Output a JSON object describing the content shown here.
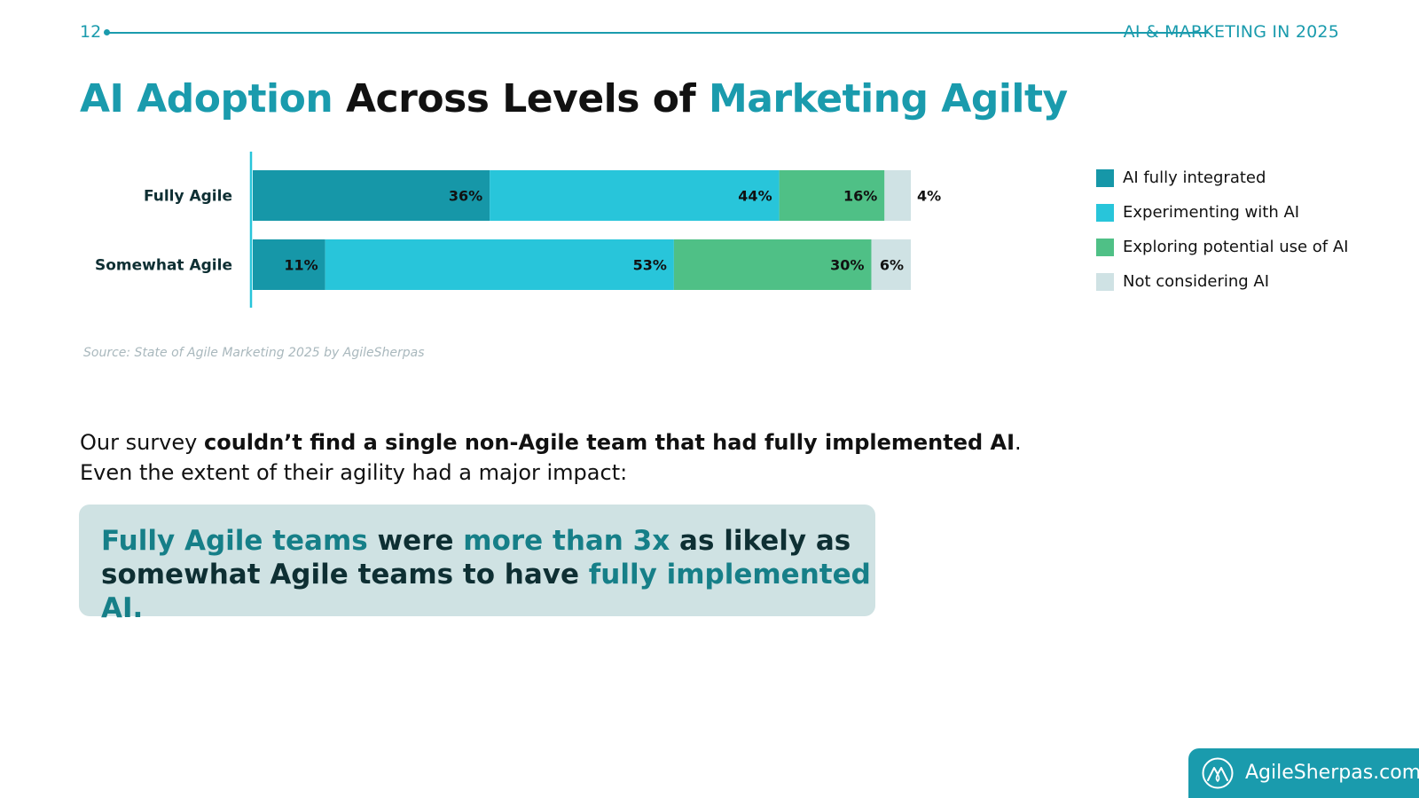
{
  "header": {
    "page_number": "12",
    "section": "AI & MARKETING IN 2025"
  },
  "title": {
    "part1": "AI Adoption",
    "part2": " Across Levels of ",
    "part3": "Marketing Agilty"
  },
  "chart_data": {
    "type": "bar",
    "orientation": "horizontal",
    "stacked": true,
    "categories": [
      "Fully Agile",
      "Somewhat Agile"
    ],
    "series": [
      {
        "name": "AI fully integrated",
        "values": [
          36,
          11
        ],
        "labels": [
          "36%",
          "11%"
        ],
        "color": "#1697a8"
      },
      {
        "name": "Experimenting with AI",
        "values": [
          44,
          53
        ],
        "labels": [
          "44%",
          "53%"
        ],
        "color": "#28c5da"
      },
      {
        "name": "Exploring potential use of AI",
        "values": [
          16,
          30
        ],
        "labels": [
          "16%",
          "30%"
        ],
        "color": "#4fc086"
      },
      {
        "name": "Not considering AI",
        "values": [
          4,
          6
        ],
        "labels": [
          "4%",
          "6%"
        ],
        "color": "#cfe2e4"
      }
    ],
    "xlim": [
      0,
      100
    ],
    "title": "AI Adoption Across Levels of Marketing Agilty",
    "xlabel": "",
    "ylabel": "",
    "legend_position": "right"
  },
  "legend": [
    {
      "label": "AI fully integrated",
      "color": "#1697a8"
    },
    {
      "label": "Experimenting with AI",
      "color": "#28c5da"
    },
    {
      "label": "Exploring potential use of AI",
      "color": "#4fc086"
    },
    {
      "label": "Not considering AI",
      "color": "#cfe2e4"
    }
  ],
  "source": "Source: State of Agile Marketing 2025 by AgileSherpas",
  "body": {
    "line1_prefix": "Our survey ",
    "line1_bold": "couldn’t find a single non-Agile team that had fully implemented AI",
    "line1_suffix": ".",
    "line2": "Even the extent of their agility had a major impact:"
  },
  "callout": {
    "hl1": "Fully Agile teams",
    "t1": " were ",
    "hl2": "more than 3x",
    "t2": " as likely as",
    "t3": "somewhat Agile teams to have ",
    "hl3": "fully implemented AI."
  },
  "footer": {
    "brand": "AgileSherpas.com"
  },
  "colors": {
    "accent": "#1a9bad",
    "callout_bg": "#cfe2e3",
    "callout_highlight": "#167f88"
  }
}
